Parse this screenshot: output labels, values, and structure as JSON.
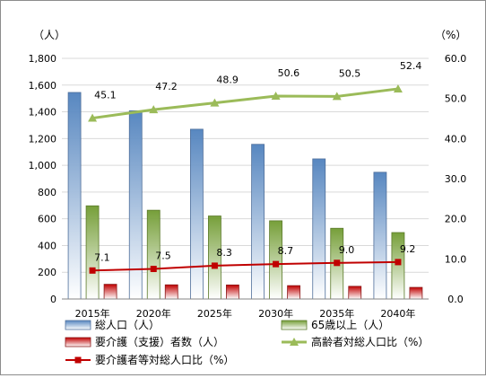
{
  "chart_data": {
    "type": "bar",
    "categories": [
      "2015年",
      "2020年",
      "2025年",
      "2030年",
      "2035年",
      "2040年"
    ],
    "left_axis": {
      "unit": "（人）",
      "ylim": [
        0,
        1800
      ],
      "ticks": [
        "0",
        "200",
        "400",
        "600",
        "800",
        "1,000",
        "1,200",
        "1,400",
        "1,600",
        "1,800"
      ]
    },
    "right_axis": {
      "unit": "（%）",
      "ylim": [
        0,
        60
      ],
      "ticks": [
        "0.0",
        "10.0",
        "20.0",
        "30.0",
        "40.0",
        "50.0",
        "60.0"
      ]
    },
    "series": [
      {
        "name": "総人口（人）",
        "kind": "bar",
        "axis": "left",
        "color": "#4f81bd",
        "values": [
          1545,
          1408,
          1270,
          1157,
          1048,
          948
        ]
      },
      {
        "name": "65歳以上（人）",
        "kind": "bar",
        "axis": "left",
        "color": "#9bbb59",
        "values": [
          697,
          664,
          621,
          585,
          529,
          497
        ]
      },
      {
        "name": "要介護（支援）者数（人）",
        "kind": "bar",
        "axis": "left",
        "color": "#c0504d",
        "values": [
          110,
          106,
          105,
          100,
          95,
          87
        ]
      },
      {
        "name": "高齢者対総人口比（%）",
        "kind": "line",
        "axis": "right",
        "color": "#9bbb59",
        "values": [
          45.1,
          47.2,
          48.9,
          50.6,
          50.5,
          52.4
        ],
        "labels": [
          "45.1",
          "47.2",
          "48.9",
          "50.6",
          "50.5",
          "52.4"
        ]
      },
      {
        "name": "要介護者等対総人口比（%）",
        "kind": "line",
        "axis": "right",
        "color": "#c00000",
        "values": [
          7.1,
          7.5,
          8.3,
          8.7,
          9.0,
          9.2
        ],
        "labels": [
          "7.1",
          "7.5",
          "8.3",
          "8.7",
          "9.0",
          "9.2"
        ]
      }
    ],
    "grid": true,
    "legend_position": "bottom"
  }
}
